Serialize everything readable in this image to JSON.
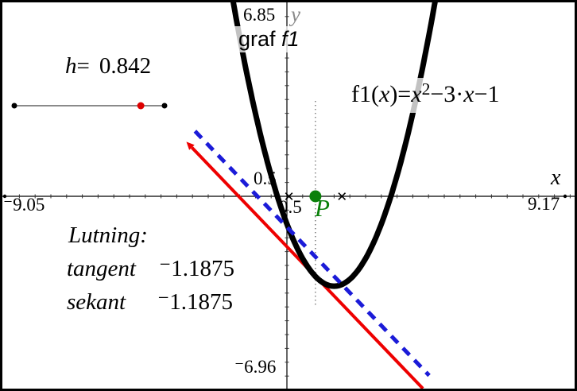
{
  "colors": {
    "curve": "#000000",
    "tangent_line": "#ee0000",
    "secant_line": "#1b1bd8",
    "point": "#0a800a",
    "axis": "#000000",
    "slider_handle": "#dd0000",
    "dotted_guide": "#555555"
  },
  "slider": {
    "variable": "h",
    "equals": "=",
    "value": "0.842"
  },
  "curve_label": {
    "prefix": "graf ",
    "name": "f1"
  },
  "equation": {
    "parts": [
      {
        "text": "f1("
      },
      {
        "text": "x"
      },
      {
        "text": ")="
      },
      {
        "text": "x"
      },
      {
        "text": "2"
      },
      {
        "text": "−3·"
      },
      {
        "text": "x"
      },
      {
        "text": "−1"
      }
    ]
  },
  "axes": {
    "x_label": "x",
    "y_label": "y",
    "x_min": "⁻9.05",
    "x_max": "9.17",
    "y_max": "6.85",
    "y_min": "⁻6.96",
    "x_tick": "0.5",
    "y_tick": "0.5"
  },
  "point": {
    "label": "P"
  },
  "slopes": {
    "title": "Lutning:",
    "rows": [
      {
        "label": "tangent",
        "value": "⁻1.1875"
      },
      {
        "label": "sekant",
        "value": "⁻1.1875"
      }
    ]
  },
  "chart_data": {
    "type": "line",
    "title": "graf f1",
    "function": {
      "name": "f1",
      "expression": "f1(x)=x^2-3*x-1",
      "coefficients": {
        "a": 1,
        "b": -3,
        "c": -1
      }
    },
    "x_range": [
      -9.05,
      9.17
    ],
    "y_range": [
      -6.96,
      6.85
    ],
    "x_tick_step": 0.5,
    "y_tick_step": 0.5,
    "grid": false,
    "h": 0.842,
    "point_P_x": 0.90625,
    "tangent": {
      "slope": -1.1875,
      "point_x": 0.90625
    },
    "secant": {
      "slope": -1.1875,
      "through_x": [
        0.06425,
        1.74825
      ]
    },
    "axis_cross_marks_x": [
      0.06425,
      1.74825
    ],
    "slope_readout": {
      "tangent": -1.1875,
      "sekant": -1.1875
    }
  }
}
